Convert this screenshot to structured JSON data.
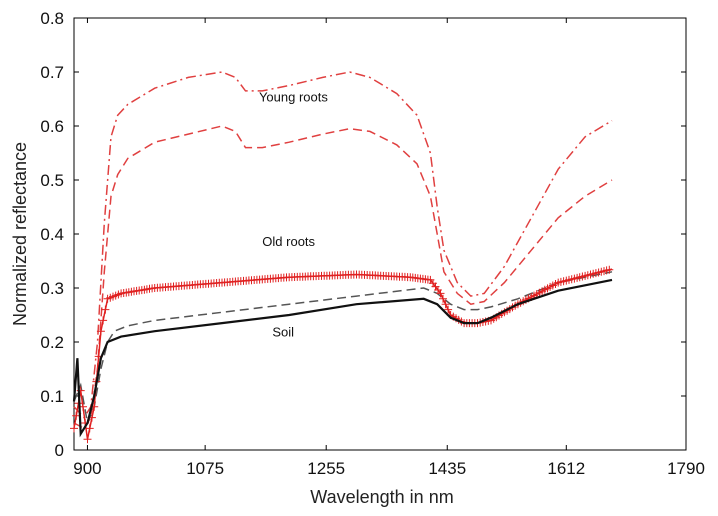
{
  "chart_data": {
    "type": "line",
    "xlabel": "Wavelength in nm",
    "ylabel": "Normalized reflectance",
    "xlim": [
      880,
      1790
    ],
    "ylim": [
      0,
      0.8
    ],
    "x_ticks": [
      900,
      1075,
      1255,
      1435,
      1612,
      1790
    ],
    "y_ticks": [
      0,
      0.1,
      0.2,
      0.3,
      0.4,
      0.5,
      0.6,
      0.7,
      0.8
    ],
    "grid": false,
    "legend": "none",
    "annotations": [
      {
        "text": "Young roots",
        "x": 1155,
        "y": 0.645
      },
      {
        "text": "Old roots",
        "x": 1160,
        "y": 0.378
      },
      {
        "text": "Soil",
        "x": 1175,
        "y": 0.21
      }
    ],
    "series": [
      {
        "style": "dashdot",
        "color": "#e04040",
        "points": [
          [
            880,
            0.08
          ],
          [
            895,
            0.06
          ],
          [
            905,
            0.08
          ],
          [
            915,
            0.2
          ],
          [
            925,
            0.42
          ],
          [
            935,
            0.58
          ],
          [
            945,
            0.62
          ],
          [
            960,
            0.64
          ],
          [
            1000,
            0.67
          ],
          [
            1050,
            0.69
          ],
          [
            1100,
            0.7
          ],
          [
            1120,
            0.69
          ],
          [
            1135,
            0.665
          ],
          [
            1160,
            0.665
          ],
          [
            1200,
            0.675
          ],
          [
            1250,
            0.69
          ],
          [
            1290,
            0.7
          ],
          [
            1320,
            0.69
          ],
          [
            1360,
            0.66
          ],
          [
            1390,
            0.62
          ],
          [
            1410,
            0.55
          ],
          [
            1420,
            0.45
          ],
          [
            1430,
            0.37
          ],
          [
            1450,
            0.31
          ],
          [
            1470,
            0.285
          ],
          [
            1490,
            0.29
          ],
          [
            1520,
            0.34
          ],
          [
            1560,
            0.43
          ],
          [
            1600,
            0.52
          ],
          [
            1640,
            0.58
          ],
          [
            1680,
            0.61
          ]
        ]
      },
      {
        "style": "dashed",
        "color": "#e04040",
        "points": [
          [
            880,
            0.05
          ],
          [
            895,
            0.04
          ],
          [
            905,
            0.06
          ],
          [
            915,
            0.15
          ],
          [
            925,
            0.33
          ],
          [
            935,
            0.47
          ],
          [
            945,
            0.51
          ],
          [
            960,
            0.54
          ],
          [
            1000,
            0.57
          ],
          [
            1050,
            0.585
          ],
          [
            1100,
            0.6
          ],
          [
            1120,
            0.59
          ],
          [
            1135,
            0.56
          ],
          [
            1160,
            0.56
          ],
          [
            1200,
            0.57
          ],
          [
            1250,
            0.585
          ],
          [
            1290,
            0.595
          ],
          [
            1320,
            0.59
          ],
          [
            1360,
            0.565
          ],
          [
            1390,
            0.53
          ],
          [
            1410,
            0.47
          ],
          [
            1420,
            0.4
          ],
          [
            1430,
            0.33
          ],
          [
            1450,
            0.29
          ],
          [
            1470,
            0.27
          ],
          [
            1490,
            0.275
          ],
          [
            1520,
            0.31
          ],
          [
            1560,
            0.37
          ],
          [
            1600,
            0.43
          ],
          [
            1640,
            0.47
          ],
          [
            1680,
            0.5
          ]
        ]
      },
      {
        "style": "dashed",
        "color": "#555555",
        "points": [
          [
            880,
            0.09
          ],
          [
            890,
            0.12
          ],
          [
            900,
            0.05
          ],
          [
            910,
            0.08
          ],
          [
            920,
            0.15
          ],
          [
            930,
            0.2
          ],
          [
            940,
            0.22
          ],
          [
            960,
            0.23
          ],
          [
            1000,
            0.24
          ],
          [
            1100,
            0.255
          ],
          [
            1200,
            0.27
          ],
          [
            1300,
            0.285
          ],
          [
            1400,
            0.3
          ],
          [
            1420,
            0.29
          ],
          [
            1440,
            0.27
          ],
          [
            1460,
            0.26
          ],
          [
            1480,
            0.26
          ],
          [
            1500,
            0.265
          ],
          [
            1540,
            0.28
          ],
          [
            1600,
            0.31
          ],
          [
            1680,
            0.33
          ]
        ]
      },
      {
        "style": "plus",
        "color": "#e02020",
        "points": [
          [
            880,
            0.04
          ],
          [
            890,
            0.11
          ],
          [
            900,
            0.02
          ],
          [
            910,
            0.08
          ],
          [
            920,
            0.22
          ],
          [
            930,
            0.28
          ],
          [
            950,
            0.29
          ],
          [
            1000,
            0.3
          ],
          [
            1100,
            0.31
          ],
          [
            1200,
            0.32
          ],
          [
            1300,
            0.325
          ],
          [
            1380,
            0.32
          ],
          [
            1410,
            0.315
          ],
          [
            1425,
            0.29
          ],
          [
            1440,
            0.25
          ],
          [
            1460,
            0.235
          ],
          [
            1480,
            0.235
          ],
          [
            1500,
            0.24
          ],
          [
            1540,
            0.27
          ],
          [
            1600,
            0.31
          ],
          [
            1680,
            0.335
          ]
        ]
      },
      {
        "style": "solid",
        "color": "#111111",
        "points": [
          [
            880,
            0.09
          ],
          [
            885,
            0.17
          ],
          [
            890,
            0.03
          ],
          [
            900,
            0.05
          ],
          [
            910,
            0.1
          ],
          [
            920,
            0.17
          ],
          [
            930,
            0.2
          ],
          [
            950,
            0.21
          ],
          [
            1000,
            0.22
          ],
          [
            1100,
            0.235
          ],
          [
            1200,
            0.25
          ],
          [
            1300,
            0.27
          ],
          [
            1400,
            0.28
          ],
          [
            1420,
            0.27
          ],
          [
            1440,
            0.245
          ],
          [
            1460,
            0.235
          ],
          [
            1480,
            0.235
          ],
          [
            1500,
            0.245
          ],
          [
            1540,
            0.27
          ],
          [
            1600,
            0.295
          ],
          [
            1680,
            0.315
          ]
        ]
      }
    ]
  }
}
